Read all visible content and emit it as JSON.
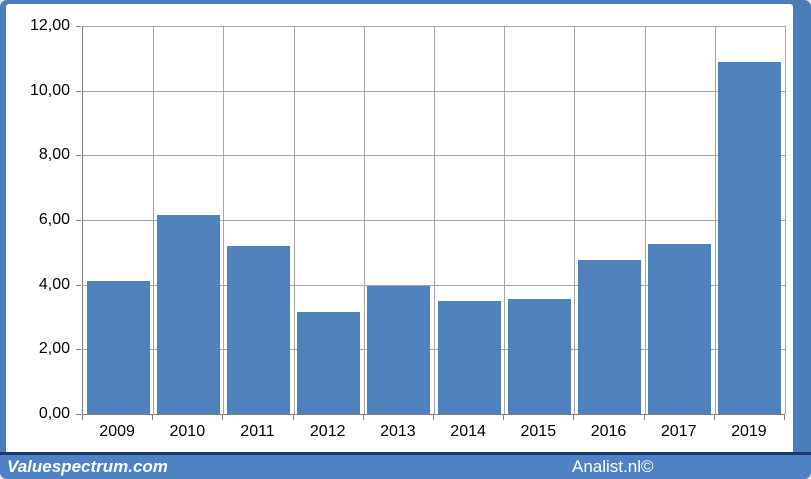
{
  "chart_data": {
    "type": "bar",
    "categories": [
      "2009",
      "2010",
      "2011",
      "2012",
      "2013",
      "2014",
      "2015",
      "2016",
      "2017",
      "2019"
    ],
    "values": [
      4.1,
      6.15,
      5.2,
      3.15,
      3.95,
      3.5,
      3.55,
      4.75,
      5.25,
      10.9
    ],
    "title": "",
    "xlabel": "",
    "ylabel": "",
    "ylim": [
      0,
      12
    ],
    "ytick_step": 2,
    "ytick_labels": [
      "0,00",
      "2,00",
      "4,00",
      "6,00",
      "8,00",
      "10,00",
      "12,00"
    ],
    "grid": "both",
    "legend": false,
    "bar_gap_fraction": 0.1,
    "number_format": "european-comma"
  },
  "colors": {
    "frame_blue": "#4a7ebb",
    "bar_blue": "#4f81bd",
    "gridline_gray": "#a6a6a6",
    "axis_gray": "#808080",
    "footer_banner_blue": "#4e82c4",
    "footer_separator_navy": "#1f3864",
    "label_text": "#000000",
    "footer_text": "#ffffff"
  },
  "footer": {
    "left_text": "Valuespectrum.com",
    "right_text": "Analist.nl©"
  }
}
